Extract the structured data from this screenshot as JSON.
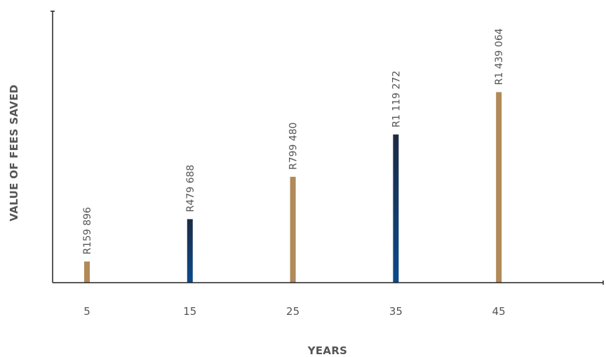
{
  "chart_data": {
    "type": "bar",
    "categories": [
      "5",
      "15",
      "25",
      "35",
      "45"
    ],
    "values": [
      159896,
      479688,
      799480,
      1119272,
      1439064
    ],
    "data_labels": [
      "R159 896",
      "R479 688",
      "R799 480",
      "R1 119 272",
      "R1 439 064"
    ],
    "xlabel": "YEARS",
    "ylabel": "VALUE OF FEES SAVED",
    "ylim": [
      0,
      2050000
    ],
    "grid": false,
    "legend": "none",
    "bar_styles": [
      "gold",
      "navy",
      "gold",
      "navy",
      "gold"
    ]
  },
  "colors": {
    "gold": "#b08a58",
    "navy_top": "#1c2a44",
    "navy_bottom": "#0a4a8a",
    "axis": "#222222",
    "text": "#555555"
  }
}
